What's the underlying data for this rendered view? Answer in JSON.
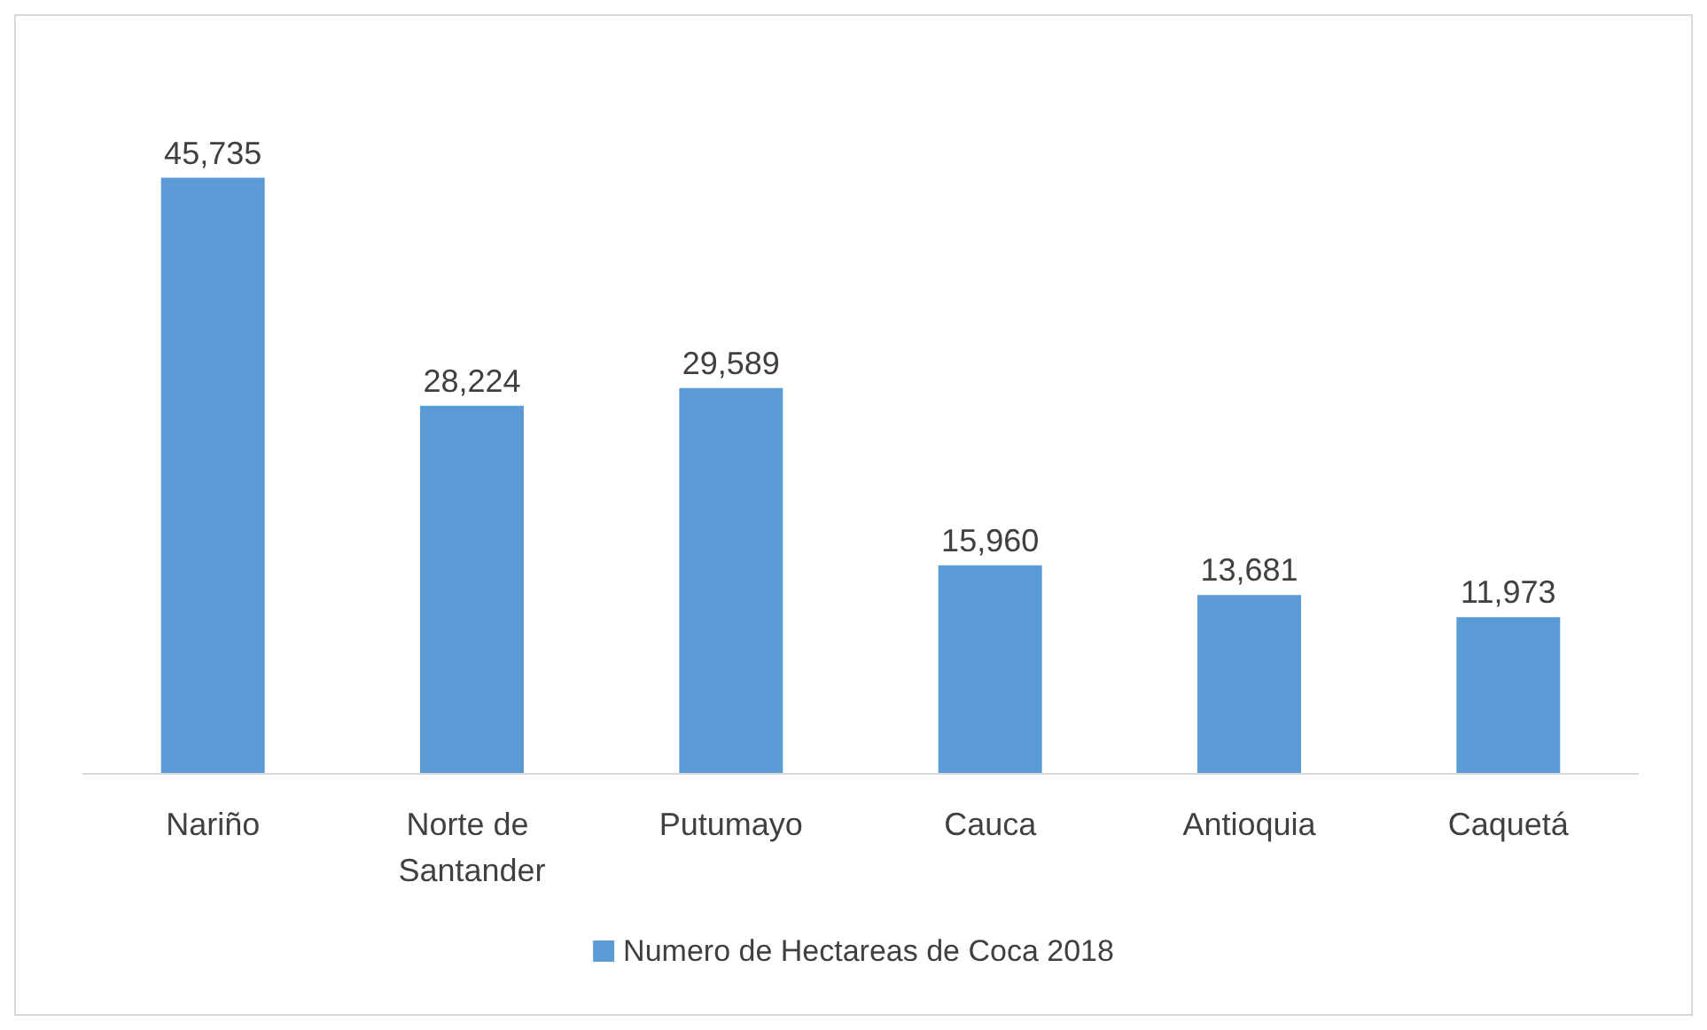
{
  "chart_data": {
    "type": "bar",
    "categories": [
      "Nariño",
      "Norte de Santander",
      "Putumayo",
      "Cauca",
      "Antioquia",
      "Caquetá"
    ],
    "series": [
      {
        "name": "Numero de Hectareas de Coca 2018",
        "color": "#5b9bd5",
        "values": [
          45735,
          28224,
          29589,
          15960,
          13681,
          11973
        ],
        "value_labels": [
          "45,735",
          "28,224",
          "29,589",
          "15,960",
          "13,681",
          "11,973"
        ]
      }
    ],
    "legend": "bottom",
    "grid": false,
    "tick_labels": "x"
  }
}
